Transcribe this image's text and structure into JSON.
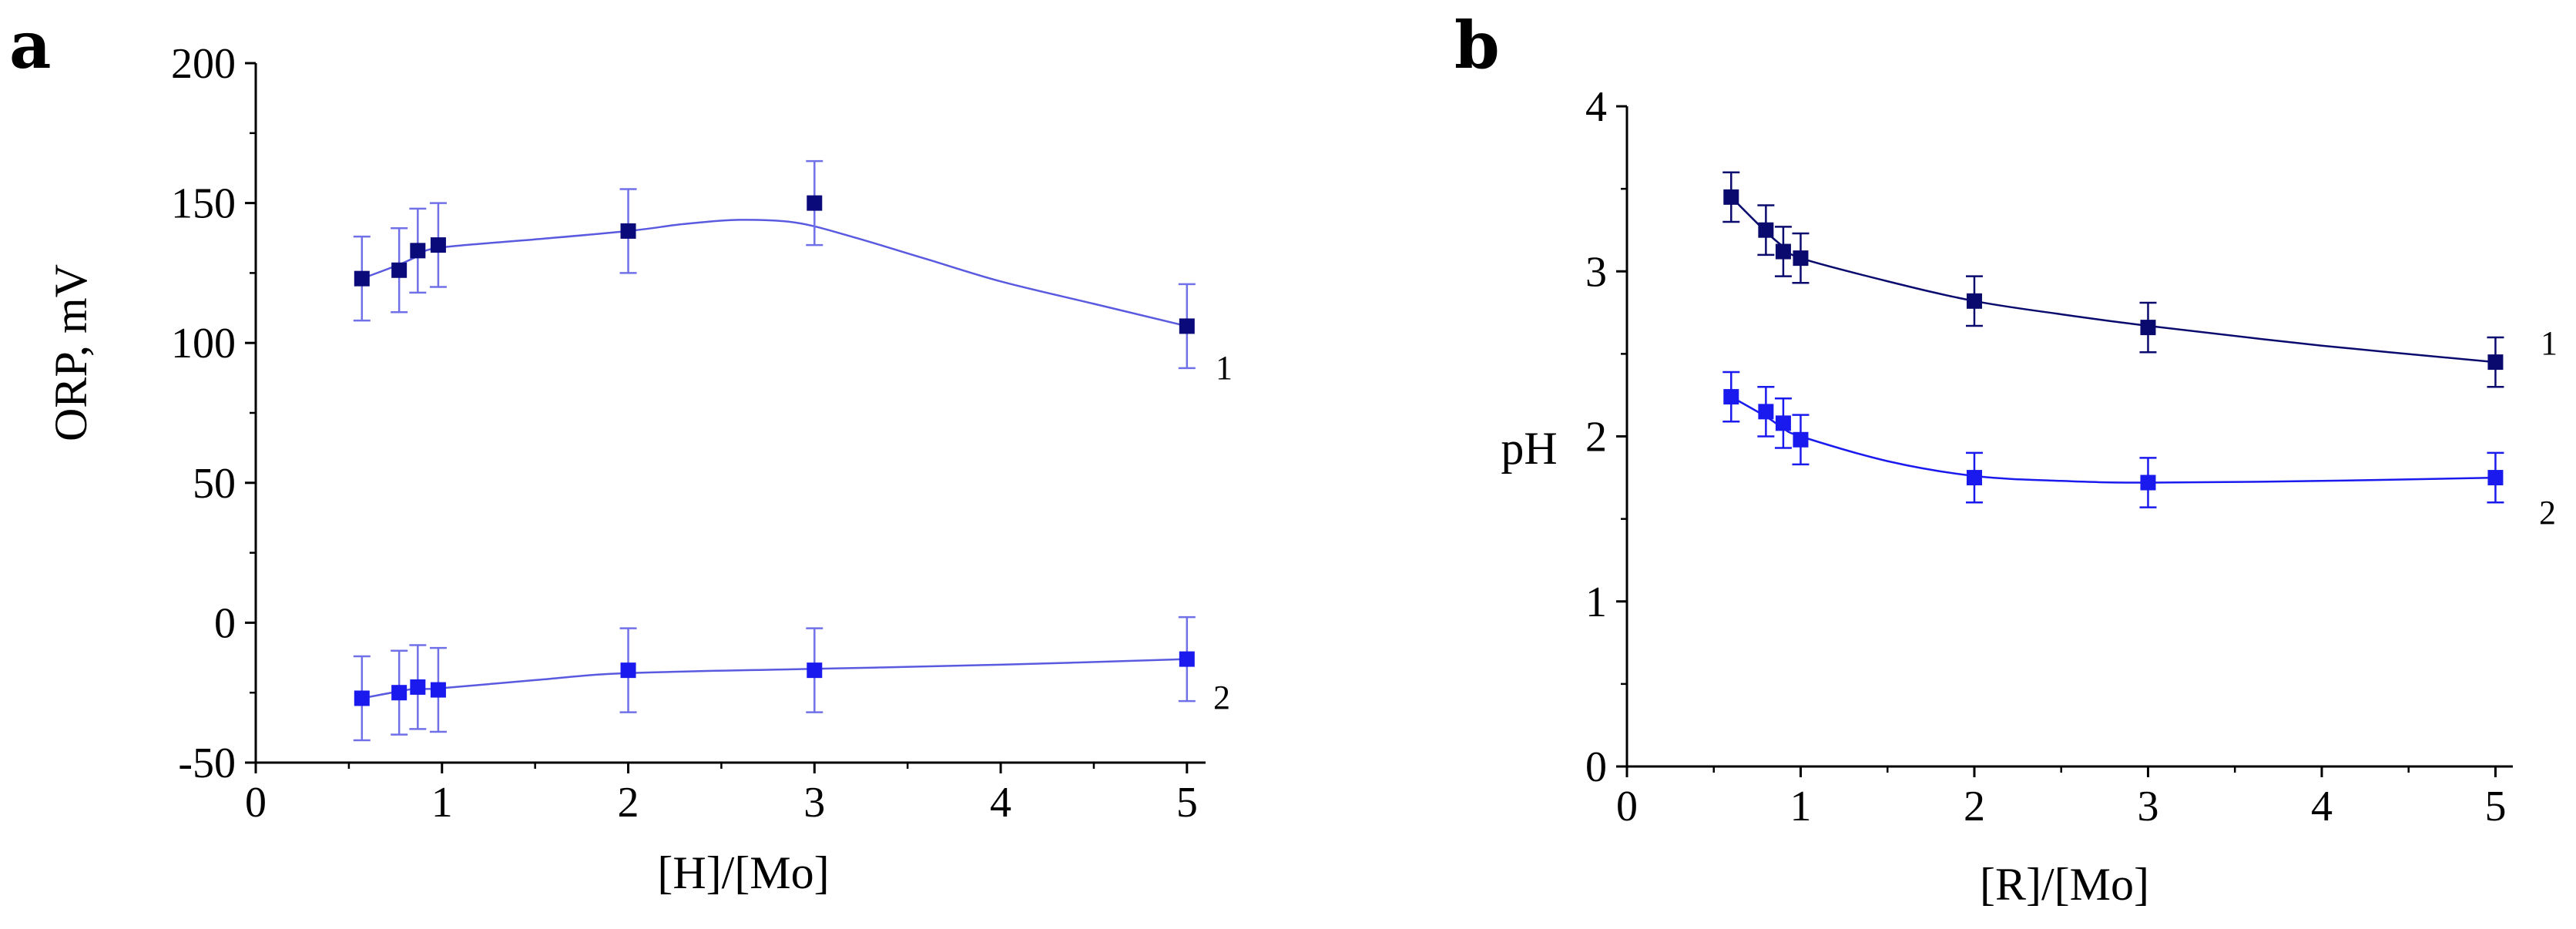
{
  "chart_data": [
    {
      "panel": "a",
      "type": "line",
      "xlabel": "[H]/[Mo]",
      "ylabel": "ORP, mV",
      "xlim": [
        0,
        5.1
      ],
      "ylim": [
        -50,
        200
      ],
      "xticks": [
        0,
        1,
        2,
        3,
        4,
        5
      ],
      "yticks": [
        -50,
        0,
        50,
        100,
        150,
        200
      ],
      "xtick_labels": [
        "0",
        "1",
        "2",
        "3",
        "4",
        "5"
      ],
      "ytick_labels": [
        "-50",
        "0",
        "50",
        "100",
        "150",
        "200"
      ],
      "grid": false,
      "series": [
        {
          "name": "1",
          "color": "#0a0a7a",
          "line_color": "#5a5ae0",
          "x": [
            0.57,
            0.77,
            0.87,
            0.98,
            2.0,
            3.0,
            5.0
          ],
          "y": [
            123,
            126,
            133,
            135,
            140,
            150,
            106
          ],
          "error": [
            15,
            15,
            15,
            15,
            15,
            15,
            15
          ],
          "fit_x": [
            0.57,
            0.77,
            0.87,
            0.98,
            1.5,
            2.0,
            2.3,
            2.6,
            2.9,
            3.2,
            3.6,
            4.0,
            4.5,
            5.0
          ],
          "fit_y": [
            123,
            128,
            131,
            134,
            137,
            140,
            142.5,
            144,
            143,
            138,
            130,
            122,
            114,
            106
          ]
        },
        {
          "name": "2",
          "color": "#1a1aee",
          "line_color": "#5a5ae0",
          "x": [
            0.57,
            0.77,
            0.87,
            0.98,
            2.0,
            3.0,
            5.0
          ],
          "y": [
            -27,
            -25,
            -23,
            -24,
            -17,
            -17,
            -13
          ],
          "error": [
            15,
            15,
            15,
            15,
            15,
            15,
            15
          ],
          "fit_x": [
            0.57,
            0.77,
            0.87,
            0.98,
            1.5,
            2.0,
            3.0,
            4.0,
            5.0
          ],
          "fit_y": [
            -27,
            -24.5,
            -23.5,
            -23.5,
            -20.5,
            -18,
            -16.5,
            -15,
            -13
          ]
        }
      ]
    },
    {
      "panel": "b",
      "type": "line",
      "xlabel": "[R]/[Mo]",
      "ylabel": "pH",
      "xlim": [
        0,
        5.1
      ],
      "ylim": [
        0,
        4
      ],
      "xticks": [
        0,
        1,
        2,
        3,
        4,
        5
      ],
      "yticks": [
        0,
        1,
        2,
        3,
        4
      ],
      "xtick_labels": [
        "0",
        "1",
        "2",
        "3",
        "4",
        "5"
      ],
      "ytick_labels": [
        "0",
        "1",
        "2",
        "3",
        "4"
      ],
      "grid": false,
      "series": [
        {
          "name": "1",
          "color": "#0a0a6e",
          "line_color": "#0a0a6e",
          "x": [
            0.6,
            0.8,
            0.9,
            1.0,
            2.0,
            3.0,
            5.0
          ],
          "y": [
            3.45,
            3.25,
            3.12,
            3.08,
            2.82,
            2.66,
            2.45
          ],
          "error": [
            0.15,
            0.15,
            0.15,
            0.15,
            0.15,
            0.15,
            0.15
          ],
          "fit_x": [
            0.6,
            0.8,
            0.9,
            1.0,
            1.5,
            2.0,
            2.5,
            3.0,
            4.0,
            5.0
          ],
          "fit_y": [
            3.45,
            3.24,
            3.15,
            3.08,
            2.94,
            2.82,
            2.74,
            2.67,
            2.55,
            2.45
          ]
        },
        {
          "name": "2",
          "color": "#1a1aee",
          "line_color": "#1a1aee",
          "x": [
            0.6,
            0.8,
            0.9,
            1.0,
            2.0,
            3.0,
            5.0
          ],
          "y": [
            2.24,
            2.15,
            2.08,
            1.98,
            1.75,
            1.72,
            1.75
          ],
          "error": [
            0.15,
            0.15,
            0.15,
            0.15,
            0.15,
            0.15,
            0.15
          ],
          "fit_x": [
            0.6,
            0.8,
            0.9,
            1.0,
            1.5,
            2.0,
            2.5,
            3.0,
            4.0,
            5.0
          ],
          "fit_y": [
            2.24,
            2.12,
            2.05,
            2.0,
            1.85,
            1.76,
            1.73,
            1.72,
            1.73,
            1.75
          ]
        }
      ]
    }
  ]
}
